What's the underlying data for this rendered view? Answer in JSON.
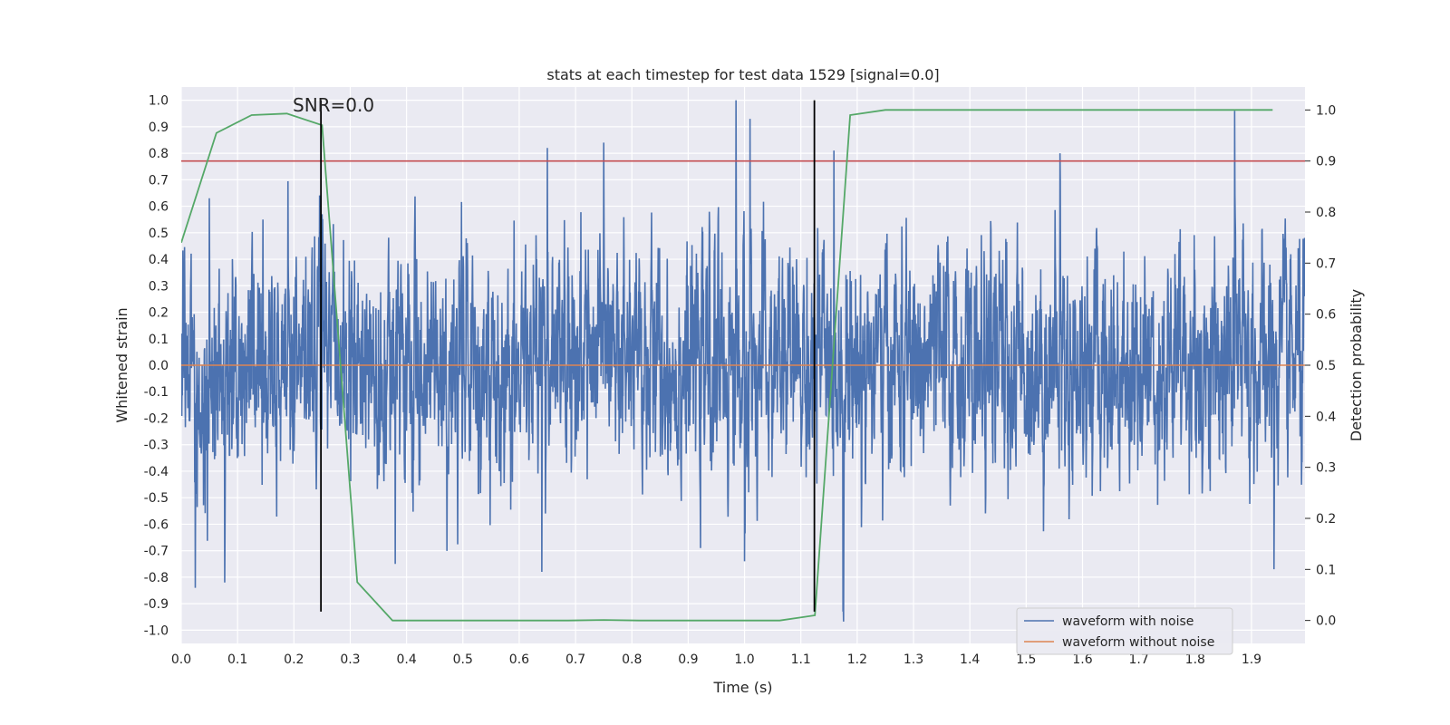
{
  "chart_data": {
    "type": "line",
    "title": "stats at each timestep for test data 1529 [signal=0.0]",
    "xlabel": "Time (s)",
    "ylabel": "Whitened strain",
    "y2label": "Detection probability",
    "xlim": [
      0.0,
      1.995
    ],
    "ylim": [
      -1.05,
      1.05
    ],
    "y2lim": [
      -0.045,
      1.045
    ],
    "xticks": [
      "0.0",
      "0.1",
      "0.2",
      "0.3",
      "0.4",
      "0.5",
      "0.6",
      "0.7",
      "0.8",
      "0.9",
      "1.0",
      "1.1",
      "1.2",
      "1.3",
      "1.4",
      "1.5",
      "1.6",
      "1.7",
      "1.8",
      "1.9"
    ],
    "yticks": [
      "1.0",
      "0.9",
      "0.8",
      "0.7",
      "0.6",
      "0.5",
      "0.4",
      "0.3",
      "0.2",
      "0.1",
      "0.0",
      "-0.1",
      "-0.2",
      "-0.3",
      "-0.4",
      "-0.5",
      "-0.6",
      "-0.7",
      "-0.8",
      "-0.9",
      "-1.0"
    ],
    "y2ticks": [
      "1.0",
      "0.9",
      "0.8",
      "0.7",
      "0.6",
      "0.5",
      "0.4",
      "0.3",
      "0.2",
      "0.1",
      "0.0"
    ],
    "grid": true,
    "legend_placement": "lower-right",
    "annotation": "SNR=0.0",
    "threshold": {
      "axis": "y2",
      "value": 0.9,
      "color": "#c44e52"
    },
    "vertical_lines": [
      0.248,
      1.124
    ],
    "series": [
      {
        "name": "waveform with noise",
        "color": "#4c72b0",
        "sample_rate": 2048,
        "noise_amplitude_approx": 0.3,
        "peaks": [
          {
            "x": 0.05,
            "y": 0.63
          },
          {
            "x": 0.145,
            "y": 0.55
          },
          {
            "x": 0.25,
            "y": 0.57
          },
          {
            "x": 0.65,
            "y": 0.82
          },
          {
            "x": 0.75,
            "y": 0.84
          },
          {
            "x": 0.985,
            "y": 1.0
          },
          {
            "x": 1.01,
            "y": 0.93
          },
          {
            "x": 1.56,
            "y": 0.8
          },
          {
            "x": 1.87,
            "y": 0.96
          },
          {
            "x": 0.025,
            "y": -0.84
          },
          {
            "x": 0.077,
            "y": -0.82
          },
          {
            "x": 0.38,
            "y": -0.75
          },
          {
            "x": 0.64,
            "y": -0.78
          },
          {
            "x": 1.0,
            "y": -0.74
          },
          {
            "x": 1.175,
            "y": -0.93
          },
          {
            "x": 1.94,
            "y": -0.77
          }
        ]
      },
      {
        "name": "waveform without noise",
        "color": "#dd8452",
        "x": [
          0.0,
          1.995
        ],
        "y": [
          0.0,
          0.0
        ]
      },
      {
        "name": "",
        "axis": "y2",
        "color": "#55a868",
        "x": [
          0.0,
          0.0625,
          0.125,
          0.1875,
          0.25,
          0.3125,
          0.375,
          0.4375,
          0.5,
          0.5625,
          0.625,
          0.6875,
          0.75,
          0.8125,
          0.875,
          0.9375,
          1.0,
          1.0625,
          1.125,
          1.1875,
          1.25,
          1.3125,
          1.375,
          1.4375,
          1.5,
          1.5625,
          1.625,
          1.6875,
          1.75,
          1.8125,
          1.875,
          1.9375
        ],
        "y": [
          0.74,
          0.955,
          0.99,
          0.993,
          0.97,
          0.075,
          0.0,
          0.0,
          0.0,
          0.0,
          0.0,
          0.0,
          0.001,
          0.0,
          0.0,
          0.0,
          0.0,
          0.0,
          0.01,
          0.99,
          1.0,
          1.0,
          1.0,
          1.0,
          1.0,
          1.0,
          1.0,
          1.0,
          1.0,
          1.0,
          1.0,
          1.0
        ]
      }
    ]
  }
}
